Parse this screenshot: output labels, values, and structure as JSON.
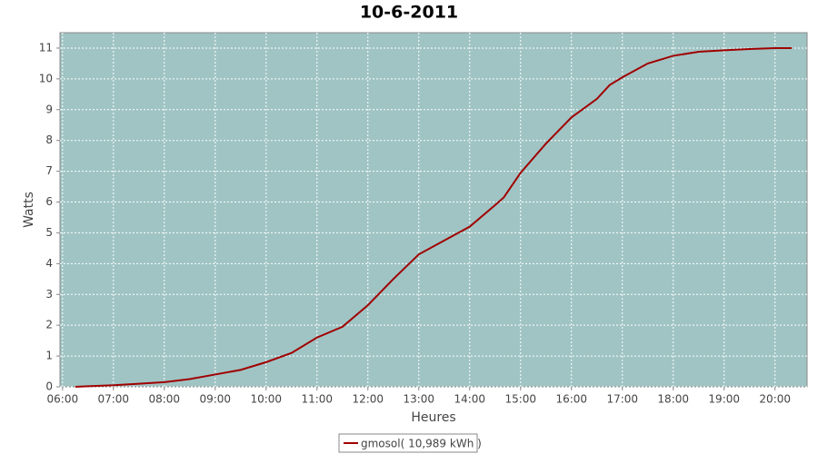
{
  "chart_data": {
    "type": "line",
    "title": "10-6-2011",
    "x_label": "Heures",
    "y_label": "Watts",
    "x": [
      6.25,
      6.5,
      7.0,
      7.5,
      8.0,
      8.5,
      9.0,
      9.5,
      10.0,
      10.5,
      11.0,
      11.5,
      12.0,
      12.5,
      13.0,
      13.5,
      14.0,
      14.5,
      14.67,
      15.0,
      15.5,
      16.0,
      16.5,
      16.75,
      17.0,
      17.5,
      18.0,
      18.5,
      19.0,
      19.5,
      20.0,
      20.33
    ],
    "series": [
      {
        "name": "gmosol( 10,989 kWh )",
        "color": "#a00000",
        "values": [
          0,
          0.02,
          0.05,
          0.1,
          0.15,
          0.25,
          0.4,
          0.55,
          0.8,
          1.1,
          1.6,
          1.95,
          2.65,
          3.5,
          4.3,
          4.75,
          5.2,
          5.9,
          6.15,
          6.95,
          7.9,
          8.75,
          9.35,
          9.8,
          10.05,
          10.5,
          10.75,
          10.88,
          10.93,
          10.97,
          11.0,
          11.0
        ]
      }
    ],
    "xlim": [
      5.95,
      20.63
    ],
    "xticks": [
      {
        "value": 6,
        "label": "06:00"
      },
      {
        "value": 7,
        "label": "07:00"
      },
      {
        "value": 8,
        "label": "08:00"
      },
      {
        "value": 9,
        "label": "09:00"
      },
      {
        "value": 10,
        "label": "10:00"
      },
      {
        "value": 11,
        "label": "11:00"
      },
      {
        "value": 12,
        "label": "12:00"
      },
      {
        "value": 13,
        "label": "13:00"
      },
      {
        "value": 14,
        "label": "14:00"
      },
      {
        "value": 15,
        "label": "15:00"
      },
      {
        "value": 16,
        "label": "16:00"
      },
      {
        "value": 17,
        "label": "17:00"
      },
      {
        "value": 18,
        "label": "18:00"
      },
      {
        "value": 19,
        "label": "19:00"
      },
      {
        "value": 20,
        "label": "20:00"
      }
    ],
    "ylim": [
      0,
      11.5
    ],
    "yticks": [
      0,
      1,
      2,
      3,
      4,
      5,
      6,
      7,
      8,
      9,
      10,
      11
    ],
    "grid": true,
    "plot_background": "#a0c4c4"
  }
}
